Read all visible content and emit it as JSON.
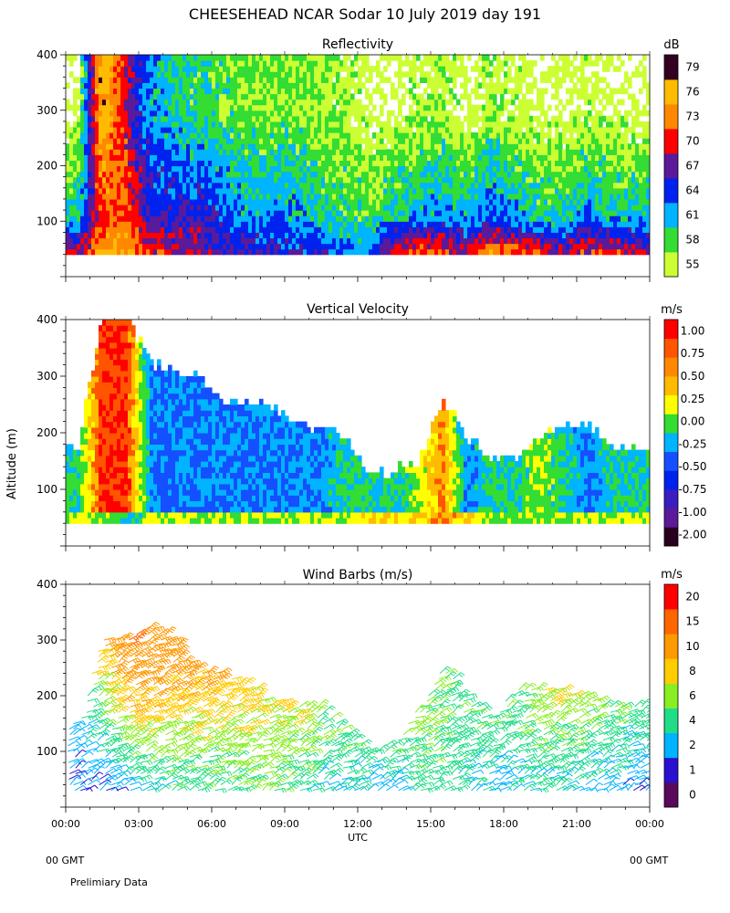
{
  "header": {
    "title": "CHEESEHEAD   NCAR Sodar   10 July 2019   day 191"
  },
  "footer": {
    "left_gmt": "00 GMT",
    "right_gmt": "00 GMT",
    "note": "Prelimiary Data"
  },
  "colors": {
    "colorbar_reflectivity": [
      "#ccff33",
      "#33dd33",
      "#00b4ff",
      "#0022ee",
      "#5a1a9a",
      "#ff0000",
      "#ff8800",
      "#ffbb00",
      "#330022"
    ],
    "colorbar_velocity": [
      "#2a0020",
      "#5a1a9a",
      "#3a1ec0",
      "#0022ee",
      "#1450ff",
      "#00b4ff",
      "#33dd33",
      "#ffff00",
      "#ffbb00",
      "#ff8800",
      "#ff5500",
      "#ff0000"
    ],
    "colorbar_wind": [
      "#5a0a5a",
      "#2a10d0",
      "#00b4ff",
      "#22dd88",
      "#88ee22",
      "#ffcc00",
      "#ff9900",
      "#ff6600",
      "#ff0000"
    ]
  },
  "chart_data": [
    {
      "type": "heatmap",
      "title": "Reflectivity",
      "xlabel": "",
      "ylabel": "",
      "xlim": [
        0,
        24
      ],
      "ylim": [
        0,
        400
      ],
      "x_ticks_hours": [
        0,
        3,
        6,
        9,
        12,
        15,
        18,
        21,
        24
      ],
      "y_ticks": [
        100,
        200,
        300,
        400
      ],
      "y_tick_labels": [
        "100",
        "200",
        "300",
        "400"
      ],
      "data_altitude_range": [
        40,
        400
      ],
      "colorbar": {
        "unit": "dB",
        "levels": [
          "55",
          "58",
          "61",
          "64",
          "67",
          "70",
          "73",
          "76",
          "79"
        ],
        "level_values": [
          55,
          58,
          61,
          64,
          67,
          70,
          73,
          76,
          79
        ]
      },
      "hourly_profiles": {
        "hours": [
          0,
          1,
          2,
          3,
          4,
          5,
          6,
          7,
          8,
          9,
          10,
          11,
          12,
          13,
          14,
          15,
          16,
          17,
          18,
          19,
          20,
          21,
          22,
          23
        ],
        "near_surface_dB": [
          70,
          76,
          76,
          72,
          70,
          70,
          68,
          67,
          67,
          66,
          66,
          64,
          63,
          72,
          72,
          73,
          70,
          74,
          73,
          72,
          70,
          72,
          71,
          70
        ],
        "level_100m_dB": [
          61,
          73,
          73,
          67,
          67,
          67,
          65,
          63,
          64,
          63,
          61,
          60,
          60,
          62,
          63,
          64,
          62,
          66,
          63,
          61,
          61,
          64,
          62,
          62
        ],
        "level_300m_dB": [
          55,
          79,
          70,
          63,
          61,
          60,
          59,
          58,
          58,
          58,
          57,
          57,
          55,
          55,
          56,
          57,
          55,
          57,
          56,
          55,
          55,
          56,
          55,
          55
        ]
      }
    },
    {
      "type": "heatmap",
      "title": "Vertical Velocity",
      "xlabel": "",
      "ylabel": "Altitude (m)",
      "xlim": [
        0,
        24
      ],
      "ylim": [
        0,
        400
      ],
      "x_ticks_hours": [
        0,
        3,
        6,
        9,
        12,
        15,
        18,
        21,
        24
      ],
      "y_ticks": [
        100,
        200,
        300,
        400
      ],
      "y_tick_labels": [
        "100",
        "200",
        "300",
        "400"
      ],
      "colorbar": {
        "unit": "m/s",
        "levels": [
          "-2.00",
          "-1.00",
          "-0.75",
          "-0.50",
          "-0.25",
          "0.00",
          "0.25",
          "0.50",
          "0.75",
          "1.00"
        ],
        "level_values": [
          -2.0,
          -1.0,
          -0.75,
          -0.5,
          -0.25,
          0.0,
          0.25,
          0.5,
          0.75,
          1.0
        ]
      },
      "hourly_profiles": {
        "hours": [
          0,
          1,
          2,
          3,
          4,
          5,
          6,
          7,
          8,
          9,
          10,
          11,
          12,
          13,
          14,
          15,
          16,
          17,
          18,
          19,
          20,
          21,
          22,
          23
        ],
        "data_top_m": [
          170,
          400,
          400,
          320,
          300,
          300,
          250,
          250,
          240,
          210,
          200,
          190,
          120,
          130,
          150,
          250,
          190,
          150,
          150,
          190,
          210,
          210,
          170,
          170
        ],
        "near_surface_mps": [
          0.25,
          0.25,
          0.0,
          0.25,
          0.25,
          0.25,
          0.25,
          0.25,
          0.25,
          0.25,
          0.25,
          0.25,
          0.5,
          0.5,
          0.5,
          0.75,
          0.5,
          0.25,
          0.25,
          0.25,
          0.25,
          0.25,
          0.25,
          0.25
        ],
        "mid_level_mps": [
          0.0,
          1.0,
          1.0,
          -0.25,
          -0.25,
          -0.25,
          -0.25,
          -0.25,
          -0.25,
          -0.25,
          -0.25,
          0.0,
          0.0,
          0.0,
          0.25,
          0.75,
          -0.25,
          0.0,
          0.0,
          0.25,
          0.0,
          -0.25,
          0.0,
          0.0
        ]
      }
    },
    {
      "type": "scatter",
      "title": "Wind Barbs (m/s)",
      "xlabel": "UTC",
      "ylabel": "",
      "xlim": [
        0,
        24
      ],
      "ylim": [
        0,
        400
      ],
      "x_ticks_hours": [
        0,
        3,
        6,
        9,
        12,
        15,
        18,
        21,
        24
      ],
      "x_tick_labels": [
        "00:00",
        "03:00",
        "06:00",
        "09:00",
        "12:00",
        "15:00",
        "18:00",
        "21:00",
        "00:00"
      ],
      "y_ticks": [
        100,
        200,
        300,
        400
      ],
      "y_tick_labels": [
        "100",
        "200",
        "300",
        "400"
      ],
      "colorbar": {
        "unit": "m/s",
        "levels": [
          "0",
          "1",
          "2",
          "4",
          "6",
          "8",
          "10",
          "15",
          "20"
        ],
        "level_values": [
          0,
          1,
          2,
          4,
          6,
          8,
          10,
          15,
          20
        ]
      },
      "hourly_profiles": {
        "hours": [
          0,
          1,
          2,
          3,
          4,
          5,
          6,
          7,
          8,
          9,
          10,
          11,
          12,
          13,
          14,
          15,
          16,
          17,
          18,
          19,
          20,
          21,
          22,
          23
        ],
        "data_top_m": [
          150,
          300,
          300,
          330,
          300,
          250,
          240,
          220,
          200,
          180,
          180,
          140,
          100,
          120,
          180,
          250,
          200,
          160,
          210,
          210,
          210,
          200,
          180,
          180
        ],
        "near_surface_speed": [
          2,
          2,
          3,
          4,
          5,
          5,
          5,
          6,
          6,
          5,
          4,
          4,
          3,
          3,
          5,
          5,
          4,
          3,
          4,
          4,
          4,
          3,
          3,
          2
        ],
        "upper_speed": [
          3,
          10,
          15,
          15,
          12,
          11,
          10,
          9,
          8,
          8,
          6,
          6,
          5,
          6,
          7,
          6,
          6,
          6,
          6,
          8,
          8,
          7,
          6,
          5
        ]
      }
    }
  ]
}
